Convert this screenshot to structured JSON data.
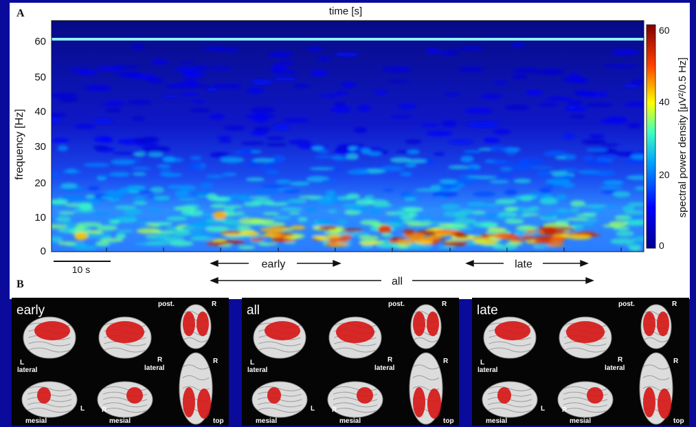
{
  "panelA": {
    "letter": "A",
    "title": "time [s]",
    "ylabel": "frequency  [Hz]",
    "yticks": [
      "0",
      "10",
      "20",
      "30",
      "40",
      "50",
      "60"
    ],
    "scalebar_label": "10 s",
    "colorbar": {
      "label": "spectral power density  [μV²/0.5 Hz]",
      "ticks": [
        "0",
        "20",
        "40",
        "60"
      ]
    },
    "ranges": {
      "early_label": "early",
      "late_label": "late",
      "all_label": "all"
    }
  },
  "panelB": {
    "letter": "B",
    "groups": [
      {
        "title": "early",
        "labels": {
          "post": "post.",
          "r_top": "R",
          "l": "L",
          "lateral_left": "lateral",
          "r_mid": "R",
          "lateral_right": "lateral",
          "r_top2": "R",
          "mesial_left": "mesial",
          "l2": "L",
          "r_bottom": "R",
          "mesial_right": "mesial",
          "top": "top"
        }
      },
      {
        "title": "all",
        "labels": {
          "post": "post.",
          "r_top": "R",
          "l": "L",
          "lateral_left": "lateral",
          "r_mid": "R",
          "lateral_right": "lateral",
          "r_top2": "R",
          "mesial_left": "mesial",
          "l2": "L",
          "r_bottom": "R",
          "mesial_right": "mesial",
          "top": "top"
        }
      },
      {
        "title": "late",
        "labels": {
          "post": "post.",
          "r_top": "R",
          "l": "L",
          "lateral_left": "lateral",
          "r_mid": "R",
          "lateral_right": "lateral",
          "r_top2": "R",
          "mesial_left": "mesial",
          "l2": "L",
          "r_bottom": "R",
          "mesial_right": "mesial",
          "top": "top"
        }
      }
    ]
  },
  "colors": {
    "page_bg": "#0a0a9b",
    "panel_bg": "#ffffff",
    "spectro_low": "#07077a",
    "spectro_high": "#c80000",
    "brain_bg": "#050505",
    "activation": "#d61818"
  },
  "chart_data": {
    "type": "heatmap",
    "title": "time [s]",
    "ylabel": "frequency  [Hz]",
    "ylim": [
      0,
      65
    ],
    "yticks": [
      0,
      10,
      20,
      30,
      40,
      50,
      60
    ],
    "colorbar_range": [
      0,
      60
    ],
    "colorbar_ticks": [
      0,
      20,
      40,
      60
    ],
    "band_profile": [
      {
        "freq": 2,
        "power": 35
      },
      {
        "freq": 5,
        "power": 40
      },
      {
        "freq": 10,
        "power": 22
      },
      {
        "freq": 15,
        "power": 18
      },
      {
        "freq": 20,
        "power": 15
      },
      {
        "freq": 25,
        "power": 13
      },
      {
        "freq": 30,
        "power": 9
      },
      {
        "freq": 40,
        "power": 7
      },
      {
        "freq": 50,
        "power": 6
      },
      {
        "freq": 60,
        "power": 30
      }
    ]
  }
}
